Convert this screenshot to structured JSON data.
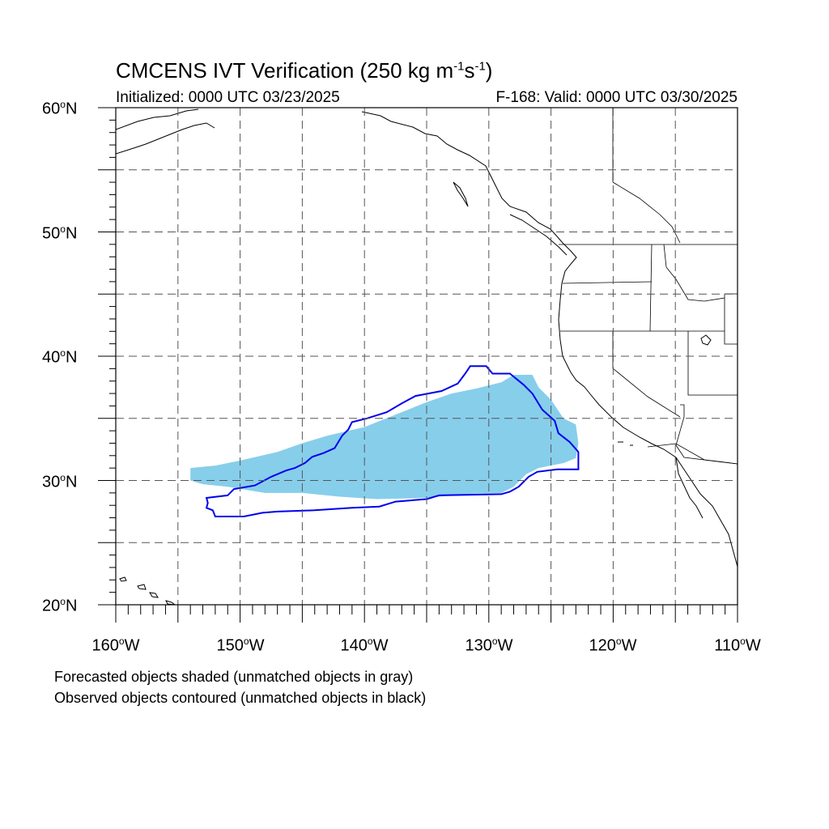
{
  "title": {
    "main": "CMCENS IVT Verification (250 kg m",
    "sup1": "-1",
    "mid": "s",
    "sup2": "-1",
    "end": ")"
  },
  "init_text": "Initialized: 0000 UTC 03/23/2025",
  "valid_text": "F-168: Valid: 0000 UTC 03/30/2025",
  "axes": {
    "lon_range": [
      -160,
      -110
    ],
    "lat_range": [
      20,
      60
    ],
    "y_labels": [
      {
        "value": "60",
        "suffix": "N"
      },
      {
        "value": "50",
        "suffix": "N"
      },
      {
        "value": "40",
        "suffix": "N"
      },
      {
        "value": "30",
        "suffix": "N"
      },
      {
        "value": "20",
        "suffix": "N"
      }
    ],
    "x_labels": [
      {
        "value": "160",
        "suffix": "W"
      },
      {
        "value": "150",
        "suffix": "W"
      },
      {
        "value": "140",
        "suffix": "W"
      },
      {
        "value": "130",
        "suffix": "W"
      },
      {
        "value": "120",
        "suffix": "W"
      },
      {
        "value": "110",
        "suffix": "W"
      }
    ],
    "degree_symbol": "o",
    "grid": "dashed every 5 degrees"
  },
  "legend": {
    "line1": "Forecasted objects shaded (unmatched objects in gray)",
    "line2": "Observed objects contoured (unmatched objects in black)"
  },
  "colors": {
    "forecast_fill": "#87ceeb",
    "observed_contour": "#0000ee",
    "coast": "#000000",
    "grid": "#555555"
  },
  "forecast_object": [
    [
      -154,
      30
    ],
    [
      -154,
      31
    ],
    [
      -152,
      31.2
    ],
    [
      -150,
      31.6
    ],
    [
      -147,
      32.3
    ],
    [
      -145,
      33
    ],
    [
      -143,
      33.6
    ],
    [
      -140,
      34.3
    ],
    [
      -137,
      35.5
    ],
    [
      -135,
      36.3
    ],
    [
      -133,
      37
    ],
    [
      -131,
      37.4
    ],
    [
      -129,
      37.9
    ],
    [
      -128,
      38.5
    ],
    [
      -126.5,
      38.5
    ],
    [
      -126,
      37.5
    ],
    [
      -125,
      36.5
    ],
    [
      -124,
      35
    ],
    [
      -123,
      34.5
    ],
    [
      -122.8,
      33
    ],
    [
      -123,
      31.8
    ],
    [
      -124,
      31.4
    ],
    [
      -126,
      31
    ],
    [
      -127,
      30.5
    ],
    [
      -128,
      29.5
    ],
    [
      -129,
      29
    ],
    [
      -132,
      28.9
    ],
    [
      -135,
      28.6
    ],
    [
      -139,
      28.5
    ],
    [
      -142,
      28.7
    ],
    [
      -145,
      29
    ],
    [
      -148,
      29
    ],
    [
      -151,
      29.5
    ],
    [
      -153,
      29.7
    ]
  ],
  "observed_object": [
    [
      -131.5,
      39.2
    ],
    [
      -130.2,
      39.2
    ],
    [
      -129.7,
      38.6
    ],
    [
      -128.3,
      38.6
    ],
    [
      -127.2,
      37.7
    ],
    [
      -126.5,
      37
    ],
    [
      -125.7,
      35.7
    ],
    [
      -124.7,
      34.8
    ],
    [
      -124.4,
      33.8
    ],
    [
      -123.5,
      33.1
    ],
    [
      -122.8,
      32.3
    ],
    [
      -122.8,
      30.9
    ],
    [
      -124.5,
      30.9
    ],
    [
      -126.1,
      30.7
    ],
    [
      -126.8,
      30.3
    ],
    [
      -127.6,
      29.5
    ],
    [
      -128.3,
      29.1
    ],
    [
      -129,
      28.9
    ],
    [
      -134,
      28.8
    ],
    [
      -135,
      28.5
    ],
    [
      -137.5,
      28.3
    ],
    [
      -138.8,
      27.9
    ],
    [
      -141,
      27.8
    ],
    [
      -144,
      27.6
    ],
    [
      -147,
      27.5
    ],
    [
      -148.2,
      27.4
    ],
    [
      -149.7,
      27.1
    ],
    [
      -152,
      27.1
    ],
    [
      -152.2,
      27.6
    ],
    [
      -152.7,
      27.8
    ],
    [
      -152.6,
      28.2
    ],
    [
      -152.7,
      28.6
    ],
    [
      -151,
      28.8
    ],
    [
      -150.5,
      29.3
    ],
    [
      -148.8,
      29.6
    ],
    [
      -147.5,
      30.3
    ],
    [
      -146.3,
      30.8
    ],
    [
      -145.6,
      31
    ],
    [
      -144.8,
      31.4
    ],
    [
      -144.2,
      31.9
    ],
    [
      -143.3,
      32.2
    ],
    [
      -142.4,
      32.6
    ],
    [
      -141.8,
      33.6
    ],
    [
      -141.3,
      34.1
    ],
    [
      -141,
      34.7
    ],
    [
      -139.8,
      35
    ],
    [
      -138.2,
      35.5
    ],
    [
      -137,
      36.2
    ],
    [
      -135.9,
      36.8
    ],
    [
      -133.8,
      37.2
    ],
    [
      -132.5,
      37.8
    ],
    [
      -131.9,
      38.6
    ]
  ]
}
